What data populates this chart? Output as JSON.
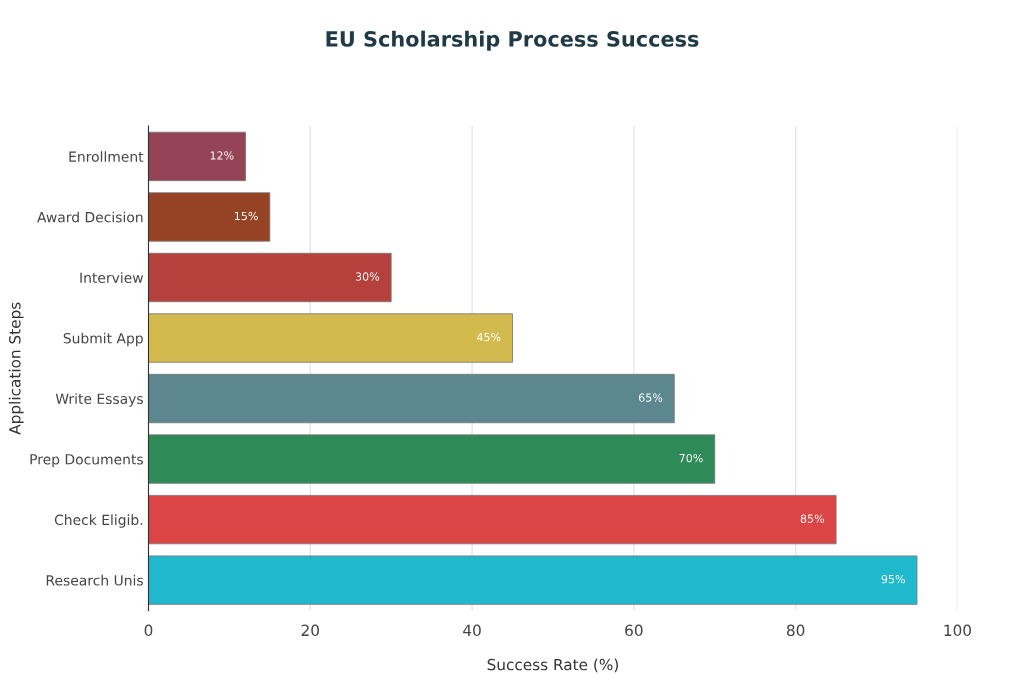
{
  "chart_data": {
    "type": "bar",
    "orientation": "horizontal",
    "title": "EU Scholarship Process Success",
    "xlabel": "Success Rate (%)",
    "ylabel": "Application Steps",
    "categories": [
      "Enrollment",
      "Award Decision",
      "Interview",
      "Submit App",
      "Write Essays",
      "Prep Documents",
      "Check Eligib.",
      "Research Unis"
    ],
    "values": [
      12,
      15,
      30,
      45,
      65,
      70,
      85,
      95
    ],
    "colors": [
      "#944454",
      "#964325",
      "#b4413c",
      "#d2ba4c",
      "#5d878f",
      "#2e8b57",
      "#db4545",
      "#1fb8cd"
    ],
    "value_labels": [
      "12%",
      "15%",
      "30%",
      "45%",
      "65%",
      "70%",
      "85%",
      "95%"
    ],
    "xlim": [
      0,
      100
    ],
    "xticks": [
      0,
      20,
      40,
      60,
      80,
      100
    ],
    "grid": "x",
    "legend": false
  }
}
